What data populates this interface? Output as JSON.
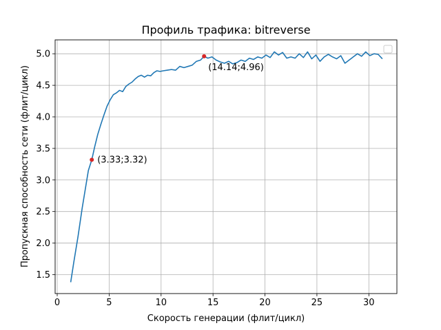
{
  "chart_data": {
    "type": "line",
    "title": "Профиль трафика: bitreverse",
    "xlabel": "Скорость генерации (флит/цикл)",
    "ylabel": "Пропускная способность сети (флит/цикл)",
    "xlim": [
      -0.2,
      32.7
    ],
    "ylim": [
      1.2,
      5.22
    ],
    "xticks": [
      0,
      5,
      10,
      15,
      20,
      25,
      30
    ],
    "yticks": [
      1.5,
      2.0,
      2.5,
      3.0,
      3.5,
      4.0,
      4.5,
      5.0
    ],
    "grid": true,
    "legend": "top-right",
    "series": [
      {
        "color": "#1f77b4",
        "x": [
          1.3,
          1.6,
          2.0,
          2.4,
          2.8,
          3.0,
          3.33,
          3.6,
          3.9,
          4.2,
          4.5,
          4.8,
          5.1,
          5.4,
          5.7,
          6.0,
          6.3,
          6.6,
          6.9,
          7.2,
          7.5,
          7.8,
          8.1,
          8.4,
          8.7,
          9.0,
          9.3,
          9.6,
          9.9,
          10.2,
          10.6,
          11.0,
          11.4,
          11.8,
          12.2,
          12.6,
          13.0,
          13.4,
          13.8,
          14.14,
          14.5,
          14.9,
          15.3,
          15.7,
          16.1,
          16.5,
          16.9,
          17.3,
          17.7,
          18.1,
          18.5,
          18.9,
          19.3,
          19.7,
          20.1,
          20.5,
          20.9,
          21.3,
          21.7,
          22.1,
          22.5,
          22.9,
          23.3,
          23.7,
          24.1,
          24.5,
          24.9,
          25.3,
          25.7,
          26.1,
          26.5,
          26.9,
          27.3,
          27.7,
          28.1,
          28.5,
          28.9,
          29.3,
          29.7,
          30.1,
          30.5,
          30.9,
          31.3
        ],
        "y": [
          1.38,
          1.7,
          2.1,
          2.55,
          2.95,
          3.15,
          3.32,
          3.52,
          3.72,
          3.88,
          4.03,
          4.17,
          4.27,
          4.35,
          4.38,
          4.42,
          4.4,
          4.48,
          4.52,
          4.55,
          4.6,
          4.64,
          4.66,
          4.63,
          4.66,
          4.65,
          4.7,
          4.73,
          4.72,
          4.73,
          4.74,
          4.75,
          4.74,
          4.8,
          4.78,
          4.8,
          4.82,
          4.88,
          4.9,
          4.96,
          4.93,
          4.95,
          4.9,
          4.87,
          4.85,
          4.88,
          4.84,
          4.86,
          4.9,
          4.88,
          4.93,
          4.91,
          4.95,
          4.93,
          4.98,
          4.94,
          5.03,
          4.98,
          5.02,
          4.93,
          4.95,
          4.93,
          5.0,
          4.94,
          5.03,
          4.92,
          4.98,
          4.88,
          4.95,
          4.99,
          4.95,
          4.92,
          4.97,
          4.85,
          4.9,
          4.95,
          5.0,
          4.96,
          5.03,
          4.97,
          5.0,
          4.99,
          4.92
        ]
      }
    ],
    "annotations": [
      {
        "x": 3.33,
        "y": 3.32,
        "label": "(3.33;3.32)"
      },
      {
        "x": 14.14,
        "y": 4.96,
        "label": "(14.14;4.96)"
      }
    ]
  }
}
